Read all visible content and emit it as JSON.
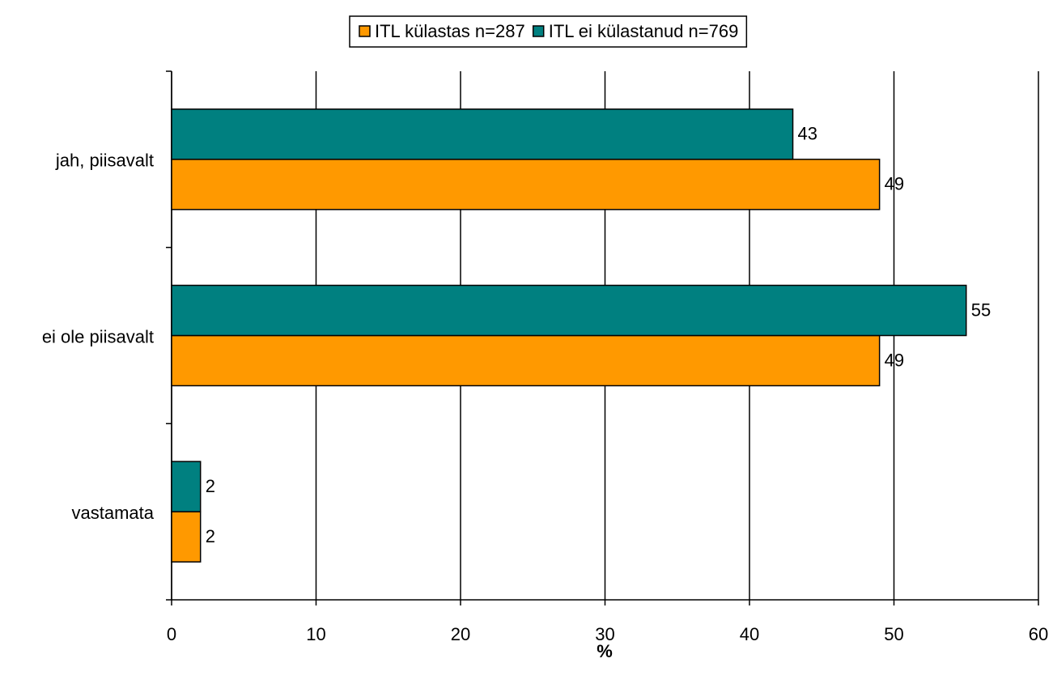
{
  "chart_data": {
    "type": "bar",
    "orientation": "horizontal",
    "categories": [
      "jah, piisavalt",
      "ei ole piisavalt",
      "vastamata"
    ],
    "series": [
      {
        "name": "ITL külastas n=287",
        "color": "#ff9900",
        "values": [
          49,
          49,
          2
        ]
      },
      {
        "name": "ITL ei külastanud n=769",
        "color": "#008080",
        "values": [
          43,
          55,
          2
        ]
      }
    ],
    "xlabel": "%",
    "xlim": [
      0,
      60
    ],
    "xticks": [
      0,
      10,
      20,
      30,
      40,
      50,
      60
    ],
    "grid": true,
    "legend": "top"
  }
}
